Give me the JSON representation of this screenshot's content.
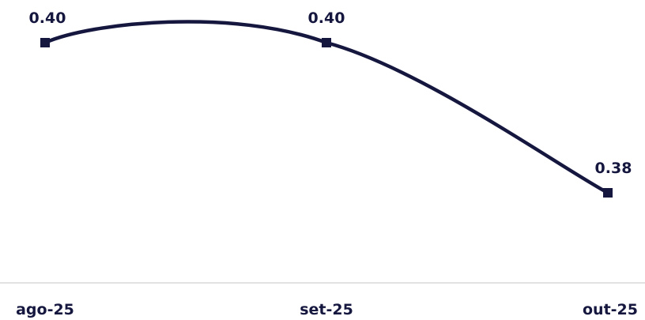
{
  "chart_data": {
    "type": "line",
    "categories": [
      "ago-25",
      "set-25",
      "out-25"
    ],
    "series": [
      {
        "values": [
          0.4,
          0.4,
          0.38
        ],
        "labels": [
          "0.40",
          "0.40",
          "0.38"
        ]
      }
    ],
    "title": "",
    "xlabel": "",
    "ylabel": "",
    "ylim": [
      0.36,
      0.405
    ],
    "grid": false,
    "smooth": true,
    "colors": {
      "line": "#15173f",
      "text": "#15173f",
      "axis": "#d9d9d9"
    }
  }
}
